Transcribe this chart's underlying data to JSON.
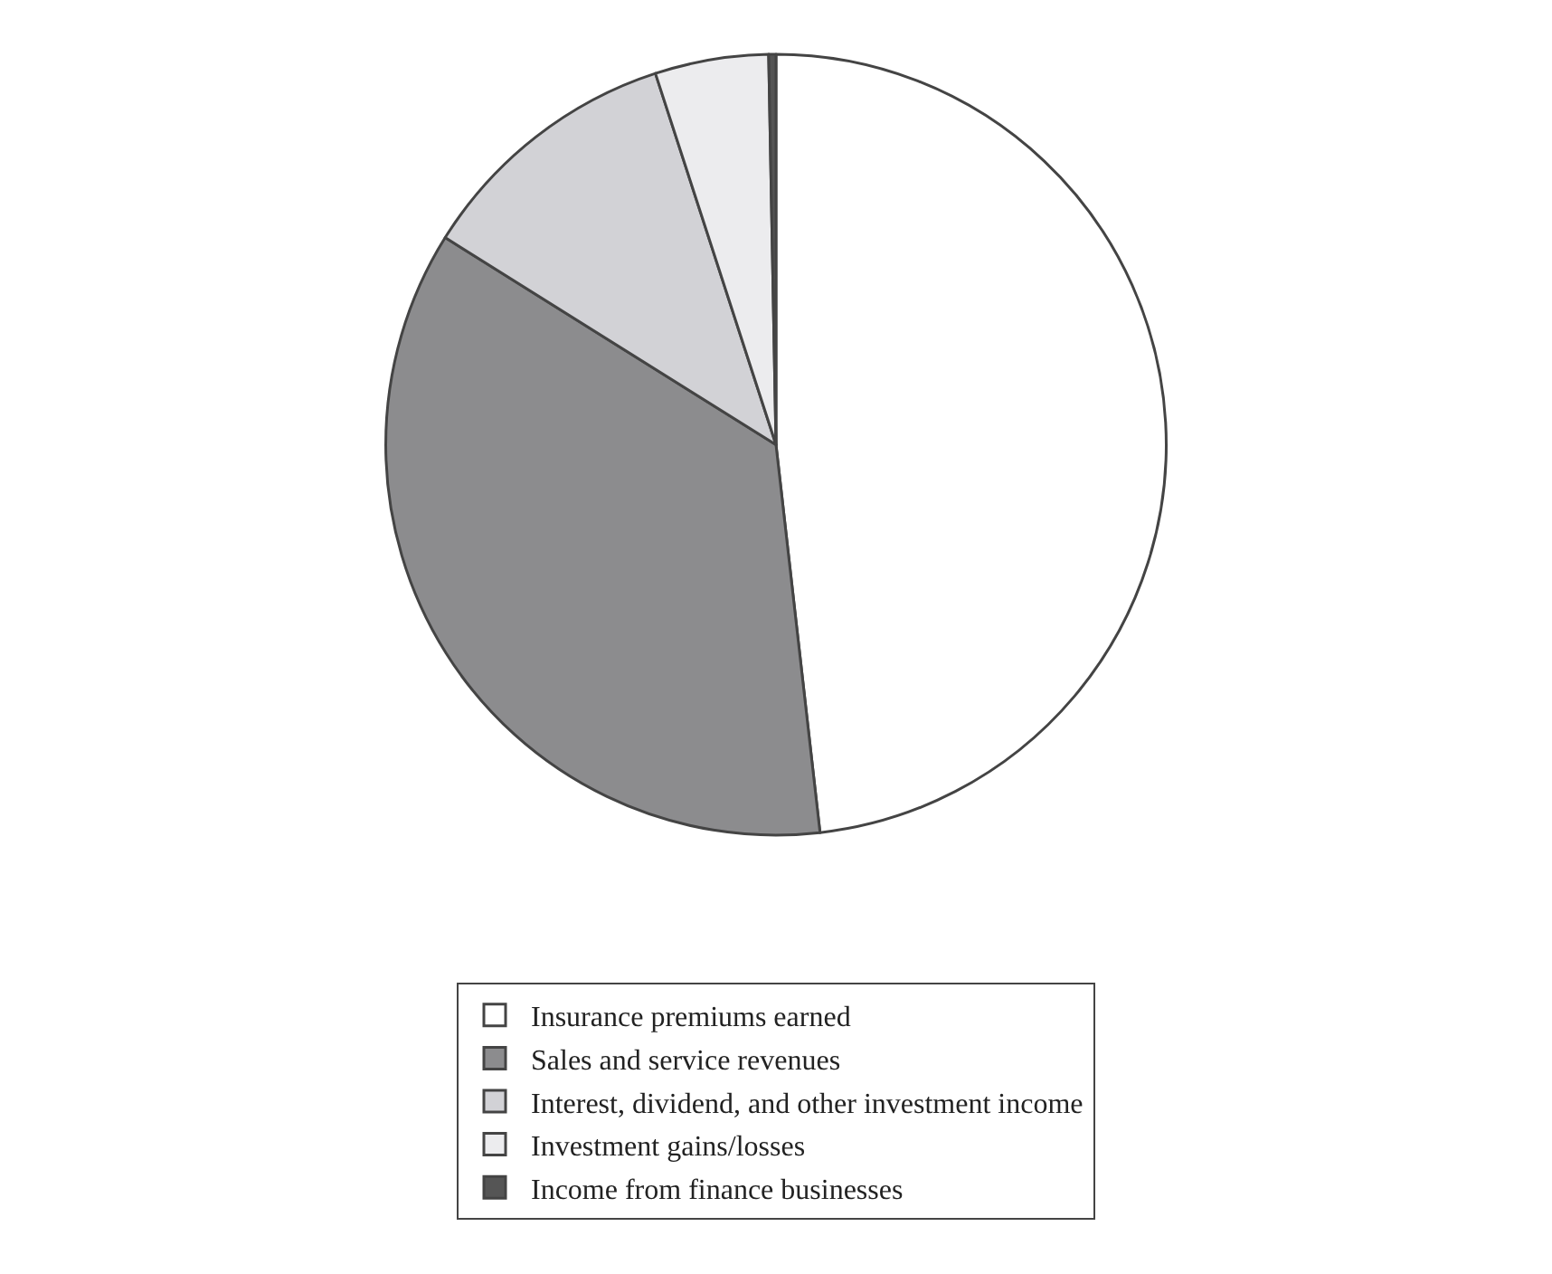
{
  "chart_data": {
    "type": "pie",
    "categories": [
      "Insurance premiums earned",
      "Sales and service revenues",
      "Interest, dividend, and other investment income",
      "Investment gains/losses",
      "Income from finance businesses"
    ],
    "values": [
      48.2,
      35.7,
      11.1,
      4.7,
      0.3
    ],
    "colors": [
      "#ffffff",
      "#8c8c8e",
      "#d2d2d6",
      "#ececee",
      "#555555"
    ],
    "legend": "bottom"
  }
}
